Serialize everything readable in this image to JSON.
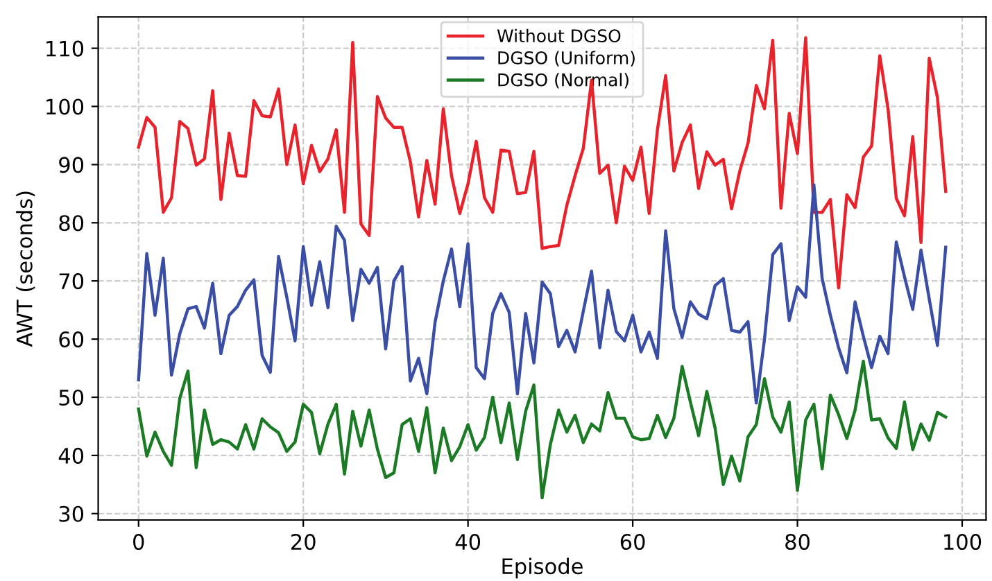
{
  "chart_data": {
    "type": "line",
    "xlabel": "Episode",
    "ylabel": "AWT (seconds)",
    "x": [
      0,
      1,
      2,
      3,
      4,
      5,
      6,
      7,
      8,
      9,
      10,
      11,
      12,
      13,
      14,
      15,
      16,
      17,
      18,
      19,
      20,
      21,
      22,
      23,
      24,
      25,
      26,
      27,
      28,
      29,
      30,
      31,
      32,
      33,
      34,
      35,
      36,
      37,
      38,
      39,
      40,
      41,
      42,
      43,
      44,
      45,
      46,
      47,
      48,
      49,
      50,
      51,
      52,
      53,
      54,
      55,
      56,
      57,
      58,
      59,
      60,
      61,
      62,
      63,
      64,
      65,
      66,
      67,
      68,
      69,
      70,
      71,
      72,
      73,
      74,
      75,
      76,
      77,
      78,
      79,
      80,
      81,
      82,
      83,
      84,
      85,
      86,
      87,
      88,
      89,
      90,
      91,
      92,
      93,
      94,
      95,
      96,
      97,
      98
    ],
    "series": [
      {
        "name": "Without DGSO",
        "color": "#e8232b",
        "values": [
          93,
          98.1,
          96.4,
          81.8,
          84.3,
          97.4,
          96.2,
          89.9,
          91,
          102.7,
          84,
          95.4,
          88.1,
          88,
          101,
          98.4,
          98.2,
          103,
          90,
          96.8,
          86.7,
          93.3,
          88.8,
          91,
          96,
          81.8,
          111,
          79.8,
          77.8,
          101.7,
          98,
          96.4,
          96.4,
          90.5,
          81,
          90.7,
          83.2,
          99.6,
          88.1,
          81.6,
          86.7,
          94,
          84.3,
          81.8,
          92.5,
          92.3,
          85,
          85.2,
          92.3,
          75.6,
          75.9,
          76.1,
          83,
          88.1,
          92.8,
          104.5,
          88.5,
          89.9,
          80,
          89.7,
          87.3,
          93,
          81.6,
          96,
          105.3,
          88.9,
          93.8,
          96.8,
          85.9,
          92.2,
          89.9,
          90.9,
          82.4,
          88.9,
          93.7,
          103.6,
          99.6,
          111.4,
          82.5,
          98.8,
          91.9,
          111.8,
          81.8,
          81.8,
          84,
          68.8,
          84.8,
          82.6,
          91.3,
          93.2,
          108.7,
          99.6,
          84.2,
          81.2,
          94.8,
          76.6,
          108.3,
          101.5,
          85.4
        ]
      },
      {
        "name": "DGSO (Uniform)",
        "color": "#3a4ea6",
        "values": [
          53,
          74.7,
          64.1,
          73.9,
          53.8,
          60.9,
          65.2,
          65.6,
          61.9,
          69.6,
          57.5,
          64.1,
          65.6,
          68.4,
          70.2,
          57.2,
          54.3,
          74.2,
          67.2,
          59.7,
          75.9,
          65.8,
          73.3,
          65.4,
          79.4,
          77,
          63.2,
          72,
          69.6,
          72.3,
          58.3,
          70,
          72.5,
          52.8,
          56.7,
          50.6,
          62.9,
          70,
          75.5,
          65.6,
          76.4,
          55.1,
          53.2,
          64.4,
          67.8,
          64.6,
          50.6,
          64.4,
          55.9,
          69.8,
          67.8,
          58.7,
          61.5,
          57.8,
          64.8,
          71.7,
          58.5,
          68.4,
          61.3,
          59.7,
          64.1,
          57.8,
          61.2,
          56.7,
          78.6,
          65.2,
          60.3,
          66.4,
          64.3,
          63.5,
          69.2,
          70.4,
          61.5,
          61.2,
          63,
          49,
          60,
          74.5,
          76.4,
          63.2,
          69,
          67.2,
          86.5,
          70.4,
          64.1,
          58.5,
          54.2,
          66.4,
          60.5,
          55.1,
          60.5,
          57.5,
          76.7,
          70.7,
          65.1,
          75.3,
          66.9,
          58.9,
          75.8
        ]
      },
      {
        "name": "DGSO (Normal)",
        "color": "#1b7a24",
        "values": [
          48,
          39.9,
          44,
          40.7,
          38.3,
          49.8,
          54.5,
          37.9,
          47.8,
          41.9,
          42.7,
          42.3,
          41.1,
          45.3,
          41.1,
          46.3,
          44.9,
          43.9,
          40.7,
          42.3,
          48.8,
          47.4,
          40.3,
          45.4,
          48.8,
          36.8,
          47.6,
          41.6,
          47.8,
          41.1,
          36.2,
          37,
          45.3,
          46.3,
          40.7,
          48.2,
          37,
          44.7,
          39.1,
          41.5,
          45.3,
          40.9,
          43.1,
          50,
          42.2,
          49,
          39.3,
          47.6,
          52.1,
          32.7,
          41.9,
          47.8,
          44,
          46.9,
          42.2,
          45.4,
          44.2,
          50.8,
          46.4,
          46.4,
          43.2,
          42.7,
          42.9,
          46.9,
          43.1,
          46.4,
          55.3,
          49.2,
          43.4,
          51,
          44.7,
          35,
          39.9,
          35.6,
          43.2,
          45.3,
          53.2,
          46.6,
          44,
          49.2,
          34,
          46.1,
          48.8,
          37.7,
          50.4,
          47,
          42.9,
          47.8,
          56.2,
          46.1,
          46.3,
          43,
          41.2,
          49.2,
          41,
          45.4,
          42.6,
          47.4,
          46.6
        ]
      }
    ],
    "xlim": [
      -4.9,
      102.9
    ],
    "ylim": [
      28.9,
      115.4
    ],
    "xticks": [
      0,
      20,
      40,
      60,
      80,
      100
    ],
    "yticks": [
      30,
      40,
      50,
      60,
      70,
      80,
      90,
      100,
      110
    ],
    "grid": true,
    "legend": "top",
    "marker": "none",
    "line_style": "solid"
  }
}
